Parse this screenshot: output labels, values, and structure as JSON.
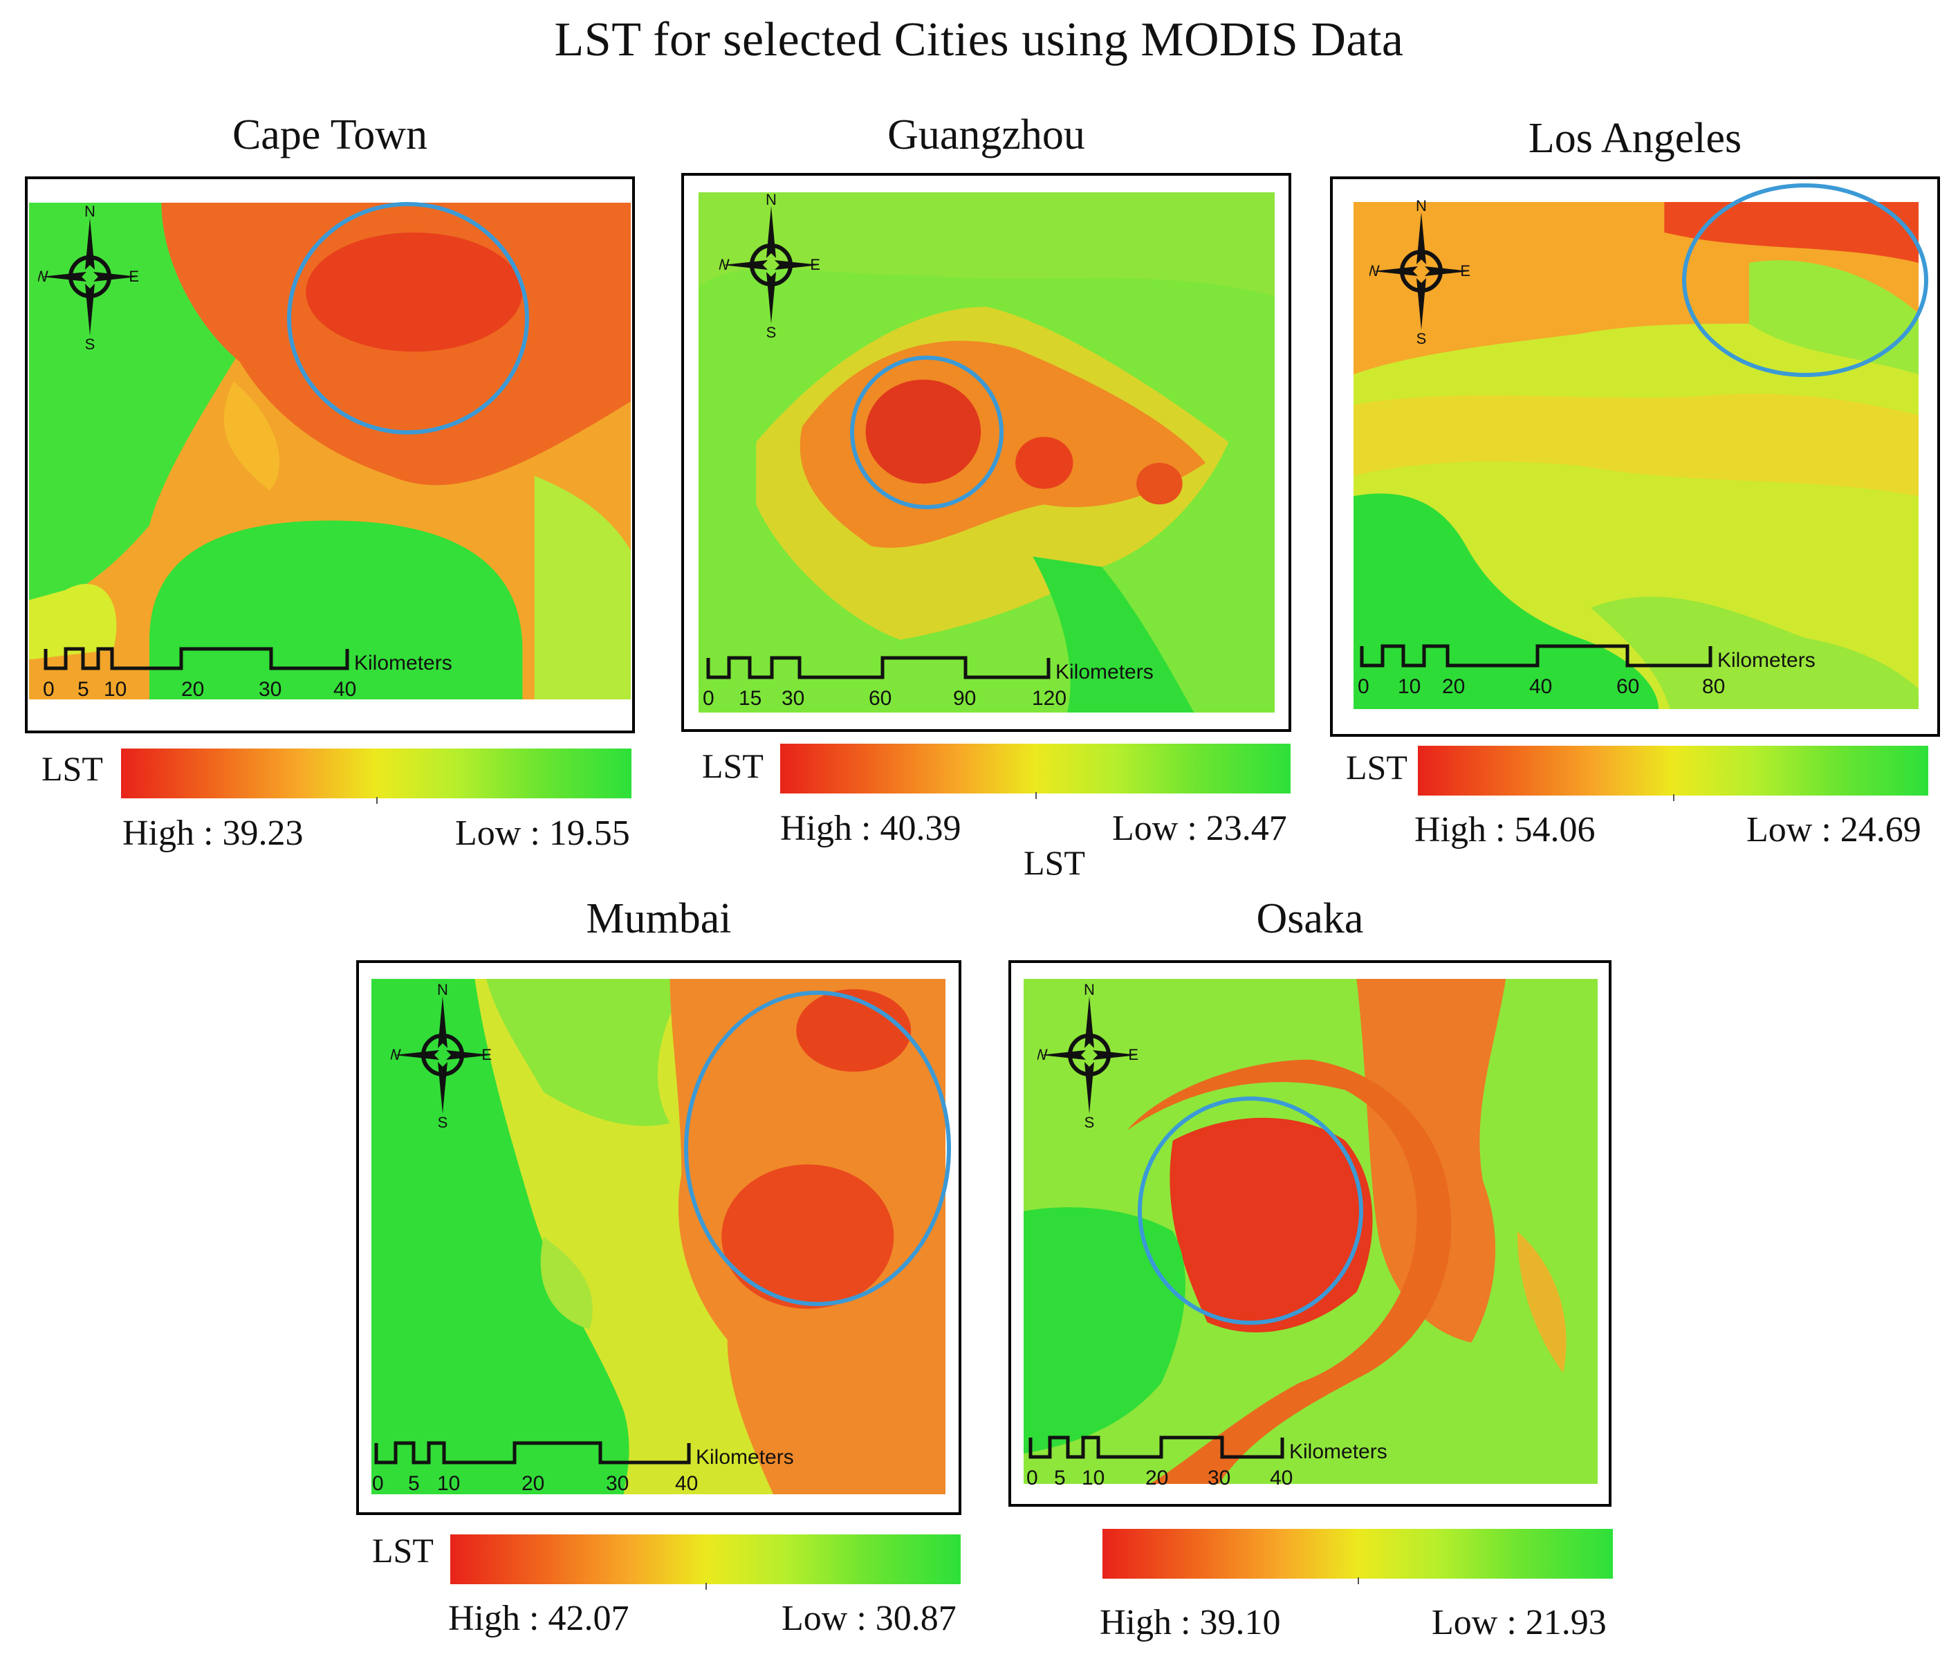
{
  "title": "LST for selected Cities using MODIS Data",
  "panels": [
    {
      "id": "cape-town",
      "city": "Cape Town",
      "legend_label": "LST",
      "high": "High : 39.23",
      "low": "Low : 19.55",
      "scale_unit": "Kilometers",
      "scale_ticks": [
        "0",
        "5",
        "10",
        "20",
        "30",
        "40"
      ],
      "compass": [
        "N",
        "S",
        "W",
        "E"
      ]
    },
    {
      "id": "guangzhou",
      "city": "Guangzhou",
      "legend_label": "LST",
      "high": "High : 40.39",
      "low": "Low : 23.47",
      "scale_unit": "Kilometers",
      "scale_ticks": [
        "0",
        "15",
        "30",
        "60",
        "90",
        "120"
      ],
      "compass": [
        "N",
        "S",
        "W",
        "E"
      ]
    },
    {
      "id": "los-angeles",
      "city": "Los Angeles",
      "legend_label": "LST",
      "high": "High : 54.06",
      "low": "Low : 24.69",
      "scale_unit": "Kilometers",
      "scale_ticks": [
        "0",
        "10",
        "20",
        "40",
        "60",
        "80"
      ],
      "compass": [
        "N",
        "S",
        "W",
        "E"
      ]
    },
    {
      "id": "mumbai",
      "city": "Mumbai",
      "legend_label": "LST",
      "high": "High : 42.07",
      "low": "Low : 30.87",
      "scale_unit": "Kilometers",
      "scale_ticks": [
        "0",
        "5",
        "10",
        "20",
        "30",
        "40"
      ],
      "compass": [
        "N",
        "S",
        "W",
        "E"
      ]
    },
    {
      "id": "osaka",
      "city": "Osaka",
      "legend_label": "LST",
      "high": "High : 39.10",
      "low": "Low : 21.93",
      "scale_unit": "Kilometers",
      "scale_ticks": [
        "0",
        "5",
        "10",
        "20",
        "30",
        "40"
      ],
      "compass": [
        "N",
        "S",
        "W",
        "E"
      ]
    }
  ],
  "colors": {
    "high": "#e8231a",
    "mid": "#ece91e",
    "low": "#2de03a",
    "highlight_circle": "#3b9ad6"
  }
}
